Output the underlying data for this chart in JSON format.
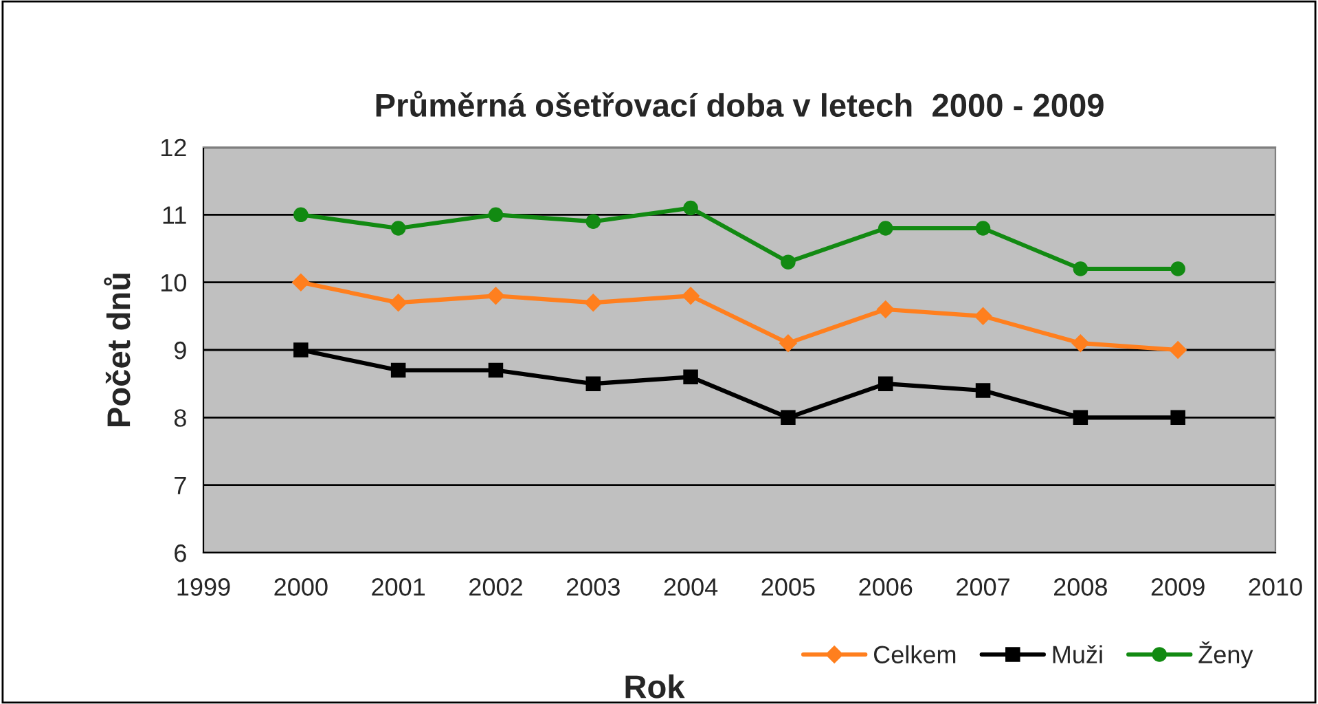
{
  "chart_data": {
    "type": "line",
    "title": "Průměrná ošetřovací doba v letech  2000 - 2009",
    "xlabel": "Rok",
    "ylabel": "Počet dnů",
    "x": [
      2000,
      2001,
      2002,
      2003,
      2004,
      2005,
      2006,
      2007,
      2008,
      2009
    ],
    "series": [
      {
        "name": "Celkem",
        "color": "#ff7f1e",
        "marker": "diamond",
        "values": [
          10.0,
          9.7,
          9.8,
          9.7,
          9.8,
          9.1,
          9.6,
          9.5,
          9.1,
          9.0
        ]
      },
      {
        "name": "Muži",
        "color": "#000000",
        "marker": "square",
        "values": [
          9.0,
          8.7,
          8.7,
          8.5,
          8.6,
          8.0,
          8.5,
          8.4,
          8.0,
          8.0
        ]
      },
      {
        "name": "Ženy",
        "color": "#128a12",
        "marker": "circle",
        "values": [
          11.0,
          10.8,
          11.0,
          10.9,
          11.1,
          10.3,
          10.8,
          10.8,
          10.2,
          10.2
        ]
      }
    ],
    "xlim": [
      1999,
      2010
    ],
    "xticks": [
      1999,
      2000,
      2001,
      2002,
      2003,
      2004,
      2005,
      2006,
      2007,
      2008,
      2009,
      2010
    ],
    "ylim": [
      6,
      12
    ],
    "yticks": [
      6,
      7,
      8,
      9,
      10,
      11,
      12
    ],
    "grid": "y",
    "legend": "bottom right",
    "line_style": "solid"
  }
}
